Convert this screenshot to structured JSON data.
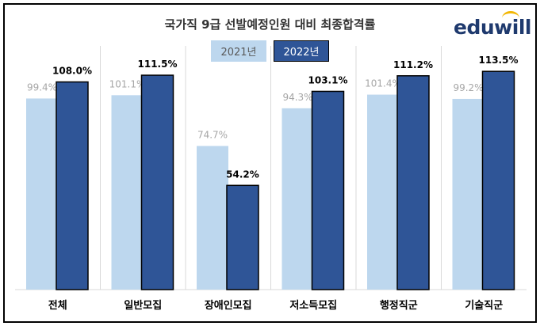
{
  "chart_data": {
    "type": "bar",
    "title": "국가직 9급 선발예정인원 대비 최종합격률",
    "categories": [
      "전체",
      "일반모집",
      "장애인모집",
      "저소득모집",
      "행정직군",
      "기술직군"
    ],
    "series": [
      {
        "name": "2021년",
        "values": [
          99.4,
          101.1,
          74.7,
          94.3,
          101.4,
          99.2
        ],
        "labels": [
          "99.4%",
          "101.1%",
          "74.7%",
          "94.3%",
          "101.4%",
          "99.2%"
        ],
        "color": "#bdd7ee"
      },
      {
        "name": "2022년",
        "values": [
          108.0,
          111.5,
          54.2,
          103.1,
          111.2,
          113.5
        ],
        "labels": [
          "108.0%",
          "111.5%",
          "54.2%",
          "103.1%",
          "111.2%",
          "113.5%"
        ],
        "color": "#2f5597"
      }
    ],
    "ylim": [
      0,
      120
    ],
    "grid": false,
    "legend": "top-center"
  },
  "logo": {
    "text": "eduwill"
  }
}
